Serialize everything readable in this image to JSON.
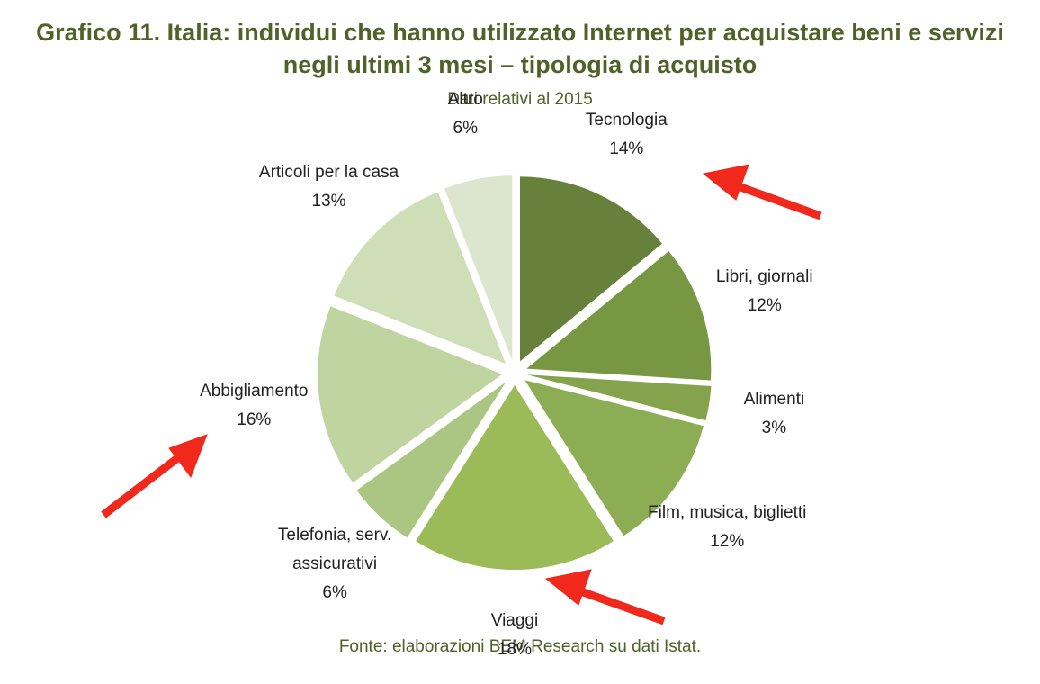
{
  "chart_data": {
    "type": "pie",
    "title": "Grafico 11. Italia: individui che hanno utilizzato Internet per acquistare beni e servizi negli ultimi 3 mesi – tipologia di acquisto",
    "subtitle": "Dati relativi al 2015",
    "source": "Fonte: elaborazioni BEM Research su dati Istat.",
    "categories": [
      "Tecnologia",
      "Libri, giornali",
      "Alimenti",
      "Film, musica, biglietti",
      "Viaggi",
      "Telefonia, serv. assicurativi",
      "Abbigliamento",
      "Articoli per la casa",
      "Altro"
    ],
    "values": [
      14,
      12,
      3,
      12,
      18,
      6,
      16,
      13,
      6
    ],
    "value_labels": [
      "14%",
      "12%",
      "3%",
      "12%",
      "18%",
      "6%",
      "16%",
      "13%",
      "6%"
    ],
    "colors": [
      "#67803a",
      "#789743",
      "#84a34c",
      "#8cad54",
      "#9bbb59",
      "#abc682",
      "#c0d4a0",
      "#cedeb7",
      "#dce6cf"
    ]
  }
}
